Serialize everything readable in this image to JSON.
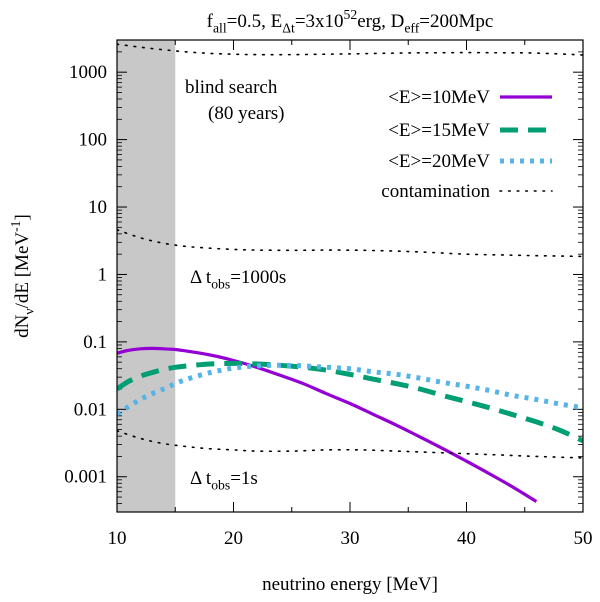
{
  "chart_data": {
    "type": "line",
    "title": {
      "parts": [
        {
          "t": "f"
        },
        {
          "t": "all",
          "sub": true
        },
        {
          "t": "=0.5, E"
        },
        {
          "t": "Δt",
          "sub": true
        },
        {
          "t": "=3x10"
        },
        {
          "t": "52",
          "sup": true
        },
        {
          "t": "erg, D"
        },
        {
          "t": "eff",
          "sub": true
        },
        {
          "t": "=200Mpc"
        }
      ]
    },
    "xlabel": "neutrino energy [MeV]",
    "ylabel": {
      "parts": [
        {
          "t": "dN"
        },
        {
          "t": "ν",
          "sub": true
        },
        {
          "t": "/dE [MeV"
        },
        {
          "t": "-1",
          "sup": true
        },
        {
          "t": "]"
        }
      ]
    },
    "xlim": [
      10,
      50
    ],
    "ylim": [
      0.0003,
      3000
    ],
    "yscale": "log",
    "xticks": [
      10,
      20,
      30,
      40,
      50
    ],
    "xtick_labels": [
      "10",
      "20",
      "30",
      "40",
      "50"
    ],
    "yticks": [
      0.001,
      0.01,
      0.1,
      1,
      10,
      100,
      1000
    ],
    "ytick_labels": [
      "0.001",
      "0.01",
      "0.1",
      "1",
      "10",
      "100",
      "1000"
    ],
    "shaded_region": {
      "x": [
        10,
        15
      ],
      "color": "#c8c8c8"
    },
    "legend_position": "top-right",
    "annotations": [
      {
        "id": "blind-search",
        "lines": [
          "blind search",
          "(80 years)"
        ]
      },
      {
        "id": "tobs-1000",
        "parts": [
          {
            "t": "Δ t"
          },
          {
            "t": "obs",
            "sub": true
          },
          {
            "t": "=1000s"
          }
        ]
      },
      {
        "id": "tobs-1",
        "parts": [
          {
            "t": "Δ t"
          },
          {
            "t": "obs",
            "sub": true
          },
          {
            "t": "=1s"
          }
        ]
      }
    ],
    "series": [
      {
        "name": "<E>=10MeV",
        "color": "#9400d3",
        "style": "solid",
        "x": [
          10,
          11,
          12,
          13,
          14,
          15,
          16,
          18,
          20,
          22,
          24,
          26,
          28,
          30,
          32,
          34,
          36,
          38,
          40,
          42,
          44,
          46
        ],
        "y": [
          0.068,
          0.075,
          0.079,
          0.08,
          0.079,
          0.077,
          0.073,
          0.064,
          0.053,
          0.042,
          0.032,
          0.024,
          0.017,
          0.0122,
          0.0084,
          0.0058,
          0.0039,
          0.0026,
          0.0017,
          0.0011,
          0.0007,
          0.00043
        ]
      },
      {
        "name": "<E>=15MeV",
        "color": "#009e73",
        "style": "dashed",
        "x": [
          10,
          11,
          12,
          13,
          14,
          15,
          16,
          18,
          20,
          22,
          24,
          26,
          28,
          30,
          32,
          34,
          36,
          38,
          40,
          42,
          44,
          46,
          48,
          50
        ],
        "y": [
          0.02,
          0.026,
          0.031,
          0.035,
          0.039,
          0.042,
          0.044,
          0.047,
          0.048,
          0.047,
          0.045,
          0.042,
          0.038,
          0.033,
          0.028,
          0.024,
          0.02,
          0.016,
          0.013,
          0.0105,
          0.0083,
          0.0065,
          0.0049,
          0.0034
        ]
      },
      {
        "name": "<E>=20MeV",
        "color": "#56b4e9",
        "style": "dotted",
        "x": [
          10,
          11,
          12,
          13,
          14,
          15,
          16,
          18,
          20,
          22,
          24,
          26,
          28,
          30,
          32,
          34,
          36,
          38,
          40,
          42,
          44,
          46,
          48,
          50
        ],
        "y": [
          0.0085,
          0.011,
          0.014,
          0.017,
          0.02,
          0.024,
          0.028,
          0.035,
          0.041,
          0.044,
          0.045,
          0.044,
          0.042,
          0.04,
          0.036,
          0.033,
          0.029,
          0.025,
          0.022,
          0.019,
          0.016,
          0.014,
          0.012,
          0.0105
        ]
      },
      {
        "name": "contamination",
        "color": "#000000",
        "style": "finedot",
        "groups": [
          {
            "x": [
              10,
              12,
              14,
              16,
              18,
              20,
              22,
              25,
              28,
              31,
              34,
              37,
              40,
              43,
              46,
              50
            ],
            "y": [
              2600,
              2350,
              2150,
              2000,
              1900,
              1850,
              1820,
              1820,
              1850,
              1880,
              1920,
              1940,
              1950,
              1940,
              1920,
              1800
            ]
          },
          {
            "x": [
              10,
              12,
              14,
              16,
              18,
              20,
              22,
              25,
              28,
              31,
              34,
              37,
              40,
              43,
              46,
              50
            ],
            "y": [
              4.6,
              3.5,
              2.9,
              2.6,
              2.45,
              2.35,
              2.3,
              2.28,
              2.3,
              2.28,
              2.22,
              2.12,
              2.0,
              1.95,
              1.9,
              1.85
            ]
          },
          {
            "x": [
              10,
              12,
              14,
              16,
              18,
              20,
              22,
              25,
              28,
              31,
              34,
              37,
              40,
              43,
              46,
              50
            ],
            "y": [
              0.0048,
              0.0037,
              0.0031,
              0.0028,
              0.0026,
              0.0025,
              0.0024,
              0.0024,
              0.0025,
              0.0025,
              0.0024,
              0.0023,
              0.0022,
              0.0021,
              0.002,
              0.0019
            ]
          }
        ]
      }
    ]
  }
}
